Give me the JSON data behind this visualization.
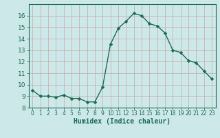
{
  "x": [
    0,
    1,
    2,
    3,
    4,
    5,
    6,
    7,
    8,
    9,
    10,
    11,
    12,
    13,
    14,
    15,
    16,
    17,
    18,
    19,
    20,
    21,
    22,
    23
  ],
  "y": [
    9.5,
    9.0,
    9.0,
    8.9,
    9.1,
    8.8,
    8.8,
    8.5,
    8.5,
    9.8,
    13.5,
    14.9,
    15.5,
    16.2,
    16.0,
    15.3,
    15.1,
    14.5,
    13.0,
    12.8,
    12.1,
    11.9,
    11.2,
    10.5
  ],
  "line_color": "#1a6b5a",
  "marker": "D",
  "marker_size": 2.5,
  "bg_color": "#cde8e8",
  "grid_color": "#c8a8a8",
  "xlabel": "Humidex (Indice chaleur)",
  "xlim": [
    -0.5,
    23.5
  ],
  "ylim": [
    8,
    17
  ],
  "yticks": [
    8,
    9,
    10,
    11,
    12,
    13,
    14,
    15,
    16
  ],
  "xticks": [
    0,
    1,
    2,
    3,
    4,
    5,
    6,
    7,
    8,
    9,
    10,
    11,
    12,
    13,
    14,
    15,
    16,
    17,
    18,
    19,
    20,
    21,
    22,
    23
  ],
  "tick_color": "#1a6b5a",
  "label_color": "#1a6b5a",
  "spine_color": "#1a6b5a",
  "xlabel_fontsize": 7,
  "ytick_fontsize": 6.5,
  "xtick_fontsize": 5.5
}
